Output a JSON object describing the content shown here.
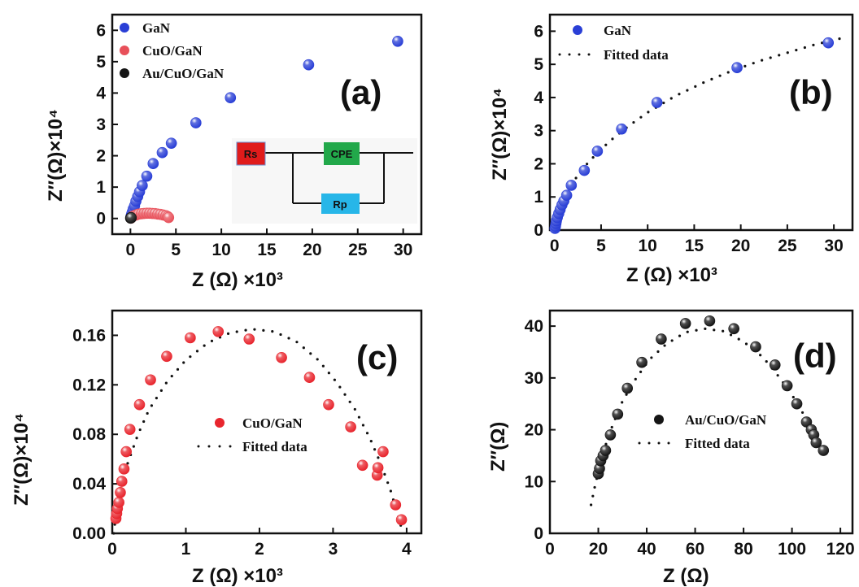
{
  "chart_data": [
    {
      "panel": "(a)",
      "type": "scatter",
      "xlabel": "Z (Ω) ×10³",
      "ylabel": "Z″(Ω)×10⁴",
      "xlim": [
        -2,
        32
      ],
      "ylim": [
        -0.5,
        6.5
      ],
      "xticks": [
        0,
        5,
        10,
        15,
        20,
        25,
        30
      ],
      "yticks": [
        0,
        1,
        2,
        3,
        4,
        5,
        6
      ],
      "legend_position": "top-left",
      "series": [
        {
          "name": "GaN",
          "color": "#2a3fd6",
          "x": [
            0.05,
            0.1,
            0.15,
            0.2,
            0.3,
            0.45,
            0.6,
            0.8,
            1.0,
            1.3,
            1.8,
            2.5,
            3.5,
            4.5,
            7.2,
            11,
            19.6,
            29.4
          ],
          "y": [
            0.05,
            0.1,
            0.15,
            0.2,
            0.3,
            0.4,
            0.55,
            0.7,
            0.85,
            1.05,
            1.35,
            1.75,
            2.1,
            2.4,
            3.05,
            3.85,
            4.9,
            5.65
          ]
        },
        {
          "name": "CuO/GaN",
          "color": "#e8505a",
          "x": [
            0.05,
            0.1,
            0.15,
            0.3,
            0.5,
            0.7,
            0.9,
            1.2,
            1.5,
            1.8,
            2.1,
            2.4,
            2.7,
            3.0,
            3.3,
            3.6,
            3.9,
            4.1,
            4.2
          ],
          "y": [
            0.01,
            0.03,
            0.05,
            0.08,
            0.1,
            0.12,
            0.14,
            0.15,
            0.16,
            0.165,
            0.165,
            0.16,
            0.155,
            0.14,
            0.13,
            0.11,
            0.09,
            0.06,
            0.03
          ]
        },
        {
          "name": "Au/CuO/GaN",
          "color": "#151515",
          "x": [
            0.02,
            0.04,
            0.06,
            0.08
          ],
          "y": [
            0.01,
            0.02,
            0.03,
            0.02
          ]
        }
      ],
      "inset": {
        "labels": [
          "Rs",
          "CPE",
          "Rp"
        ]
      }
    },
    {
      "panel": "(b)",
      "type": "scatter",
      "xlabel": "Z (Ω) ×10³",
      "ylabel": "Z″(Ω)×10⁴",
      "xlim": [
        -0.5,
        32
      ],
      "ylim": [
        0,
        6.5
      ],
      "xticks": [
        0,
        5,
        10,
        15,
        20,
        25,
        30
      ],
      "yticks": [
        0,
        1,
        2,
        3,
        4,
        5,
        6
      ],
      "legend_position": "top-left",
      "series": [
        {
          "name": "GaN",
          "color": "#2a3fd6",
          "x": [
            0.05,
            0.1,
            0.15,
            0.2,
            0.3,
            0.45,
            0.6,
            0.8,
            1.0,
            1.3,
            1.8,
            3.2,
            4.6,
            7.2,
            11,
            19.6,
            29.4
          ],
          "y": [
            0.05,
            0.12,
            0.2,
            0.28,
            0.38,
            0.5,
            0.62,
            0.76,
            0.88,
            1.05,
            1.35,
            1.8,
            2.38,
            3.05,
            3.85,
            4.9,
            5.65
          ]
        },
        {
          "name": "Fitted data",
          "style": "dotted",
          "color": "#111111",
          "x": [
            0.05,
            0.3,
            0.7,
            1.2,
            2,
            3,
            4.5,
            6,
            8,
            10,
            13,
            16,
            19,
            22,
            25,
            28,
            31
          ],
          "y": [
            0.1,
            0.45,
            0.8,
            1.1,
            1.45,
            1.85,
            2.3,
            2.7,
            3.15,
            3.55,
            4.05,
            4.45,
            4.8,
            5.1,
            5.35,
            5.6,
            5.8
          ]
        }
      ]
    },
    {
      "panel": "(c)",
      "type": "scatter",
      "xlabel": "Z (Ω) ×10³",
      "ylabel": "Z″(Ω)×10⁴",
      "xlim": [
        0,
        4.2
      ],
      "ylim": [
        0,
        0.18
      ],
      "xticks": [
        0,
        1,
        2,
        3,
        4
      ],
      "yticks": [
        0.0,
        0.04,
        0.08,
        0.12,
        0.16
      ],
      "ytick_labels": [
        "0.00",
        "0.04",
        "0.08",
        "0.12",
        "0.16"
      ],
      "legend_position": "center-right",
      "series": [
        {
          "name": "CuO/GaN",
          "color": "#e8262e",
          "x": [
            0.05,
            0.06,
            0.07,
            0.09,
            0.11,
            0.13,
            0.16,
            0.19,
            0.24,
            0.37,
            0.52,
            0.74,
            1.06,
            1.44,
            1.86,
            2.3,
            2.68,
            2.94,
            3.24,
            3.4,
            3.6,
            3.61,
            3.68,
            3.85,
            3.93
          ],
          "y": [
            0.012,
            0.016,
            0.02,
            0.025,
            0.033,
            0.042,
            0.052,
            0.066,
            0.084,
            0.104,
            0.124,
            0.143,
            0.158,
            0.163,
            0.157,
            0.142,
            0.126,
            0.104,
            0.086,
            0.055,
            0.047,
            0.053,
            0.066,
            0.023,
            0.011
          ]
        },
        {
          "name": "Fitted data",
          "style": "dotted",
          "color": "#111111",
          "x": [
            0.02,
            0.05,
            0.1,
            0.2,
            0.35,
            0.5,
            0.75,
            1.0,
            1.3,
            1.6,
            1.9,
            2.2,
            2.5,
            2.8,
            3.05,
            3.3,
            3.5,
            3.65,
            3.78,
            3.88,
            3.95
          ],
          "y": [
            0.0,
            0.015,
            0.03,
            0.055,
            0.08,
            0.1,
            0.123,
            0.14,
            0.154,
            0.162,
            0.165,
            0.163,
            0.155,
            0.14,
            0.122,
            0.1,
            0.077,
            0.056,
            0.035,
            0.015,
            0.0
          ]
        }
      ]
    },
    {
      "panel": "(d)",
      "type": "scatter",
      "xlabel": "Z (Ω)",
      "ylabel": "Z″(Ω)",
      "xlim": [
        0,
        125
      ],
      "ylim": [
        0,
        43
      ],
      "xticks": [
        0,
        20,
        40,
        60,
        80,
        100,
        120
      ],
      "yticks": [
        0,
        10,
        20,
        30,
        40
      ],
      "legend_position": "center-right",
      "series": [
        {
          "name": "Au/CuO/GaN",
          "color": "#151515",
          "x": [
            20,
            20.5,
            21,
            22,
            23,
            25,
            28,
            32,
            38,
            46,
            56,
            66,
            76,
            85,
            93,
            98,
            102,
            106,
            108,
            109,
            110,
            113
          ],
          "y": [
            11.5,
            12.5,
            14,
            15,
            16,
            19,
            23,
            28,
            33,
            37.5,
            40.5,
            41,
            39.5,
            36,
            32.5,
            28.5,
            25,
            21.5,
            20,
            19,
            17.5,
            16
          ]
        },
        {
          "name": "Fitted data",
          "style": "dotted",
          "color": "#111111",
          "x": [
            17,
            19,
            21,
            23,
            26,
            30,
            35,
            41,
            48,
            56,
            64,
            72,
            80,
            88,
            95,
            101,
            106,
            110,
            113
          ],
          "y": [
            5.5,
            10,
            13.5,
            17,
            21,
            25.5,
            29.5,
            33.5,
            36.5,
            38.8,
            39.5,
            39,
            37,
            34,
            30,
            26,
            22,
            18,
            14.5
          ]
        }
      ]
    }
  ]
}
